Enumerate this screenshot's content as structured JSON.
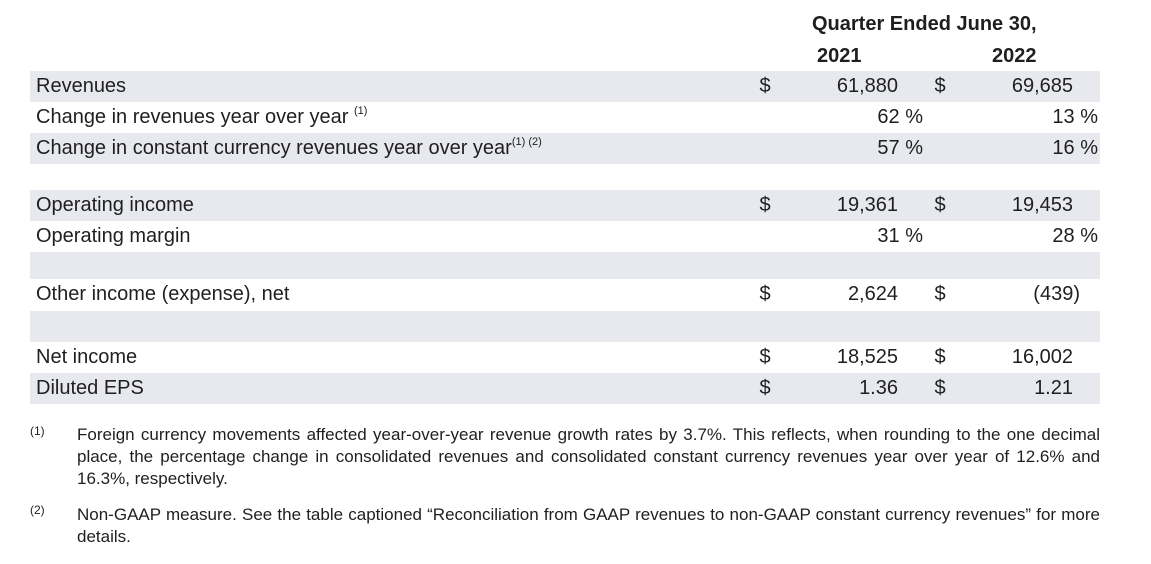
{
  "header": {
    "title": "Quarter Ended June 30,",
    "years": [
      "2021",
      "2022"
    ]
  },
  "rows": [
    {
      "label": "Revenues",
      "sup": "",
      "cur1": "$",
      "v1": "61,880",
      "cur2": "$",
      "v2": "69,685"
    },
    {
      "label": "Change in revenues year over year",
      "sup": "(1)",
      "cur1": "",
      "v1": "62 %",
      "cur2": "",
      "v2": "13 %"
    },
    {
      "label": "Change in constant currency revenues year over year",
      "sup": "(1) (2)",
      "cur1": "",
      "v1": "57 %",
      "cur2": "",
      "v2": "16 %"
    },
    {
      "label": "Operating income",
      "sup": "",
      "cur1": "$",
      "v1": "19,361",
      "cur2": "$",
      "v2": "19,453"
    },
    {
      "label": "Operating margin",
      "sup": "",
      "cur1": "",
      "v1": "31 %",
      "cur2": "",
      "v2": "28 %"
    },
    {
      "label": "Other income (expense), net",
      "sup": "",
      "cur1": "$",
      "v1": "2,624",
      "cur2": "$",
      "v2": "(439)"
    },
    {
      "label": "Net income",
      "sup": "",
      "cur1": "$",
      "v1": "18,525",
      "cur2": "$",
      "v2": "16,002"
    },
    {
      "label": "Diluted EPS",
      "sup": "",
      "cur1": "$",
      "v1": "1.36",
      "cur2": "$",
      "v2": "1.21"
    }
  ],
  "footnotes": [
    {
      "mark": "(1)",
      "text": "Foreign currency movements affected year-over-year revenue growth rates by 3.7%. This reflects, when rounding to the one decimal place, the percentage change in consolidated revenues and consolidated constant currency revenues year over year of 12.6% and 16.3%, respectively."
    },
    {
      "mark": "(2)",
      "text": "Non-GAAP measure. See the table captioned “Reconciliation from GAAP revenues to non-GAAP constant currency revenues” for more details."
    }
  ]
}
